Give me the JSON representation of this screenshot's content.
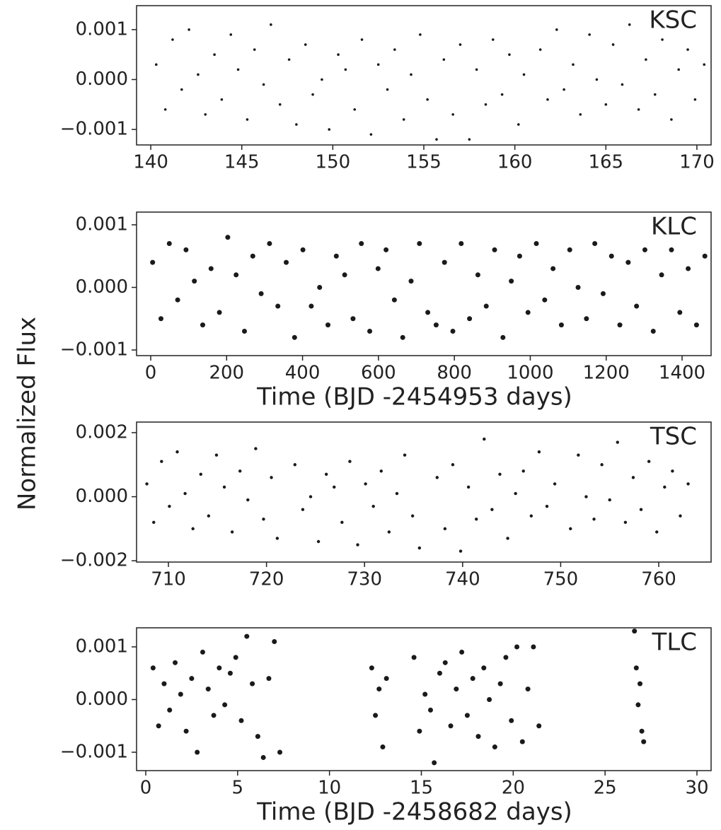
{
  "ylabel": "Normalized Flux",
  "chart_data": [
    {
      "type": "scatter",
      "label": "KSC",
      "color": "#1a1a1a",
      "marker_size": 1.8,
      "xlim": [
        139.22,
        170.78
      ],
      "ylim": [
        -0.00131,
        0.00148
      ],
      "xticks": [
        140,
        145,
        150,
        155,
        160,
        165,
        170
      ],
      "yticks": [
        {
          "value": -0.001,
          "label": "−0.001"
        },
        {
          "value": 0,
          "label": "0.000"
        },
        0.001
      ],
      "x": [
        140.3,
        140.8,
        141.2,
        141.7,
        142.1,
        142.6,
        143.0,
        143.5,
        143.9,
        144.4,
        144.8,
        145.3,
        145.7,
        146.2,
        146.6,
        147.1,
        147.6,
        148.0,
        148.5,
        148.9,
        149.4,
        149.8,
        150.3,
        150.7,
        151.2,
        151.6,
        152.1,
        152.5,
        153.0,
        153.4,
        153.9,
        154.3,
        154.8,
        155.2,
        155.7,
        156.1,
        156.6,
        157.0,
        157.5,
        157.9,
        158.4,
        158.8,
        159.3,
        159.7,
        160.2,
        160.5,
        161.4,
        161.8,
        162.3,
        162.7,
        163.2,
        163.6,
        164.1,
        164.5,
        165.0,
        165.4,
        165.9,
        166.3,
        166.8,
        167.2,
        167.7,
        168.1,
        168.6,
        169.0,
        169.5,
        169.9,
        170.4
      ],
      "y": [
        0.0003,
        -0.0006,
        0.0008,
        -0.0002,
        0.001,
        0.0001,
        -0.0007,
        0.0005,
        -0.0004,
        0.0009,
        0.0002,
        -0.0008,
        0.0006,
        -0.0001,
        0.0011,
        -0.0005,
        0.0004,
        -0.0009,
        0.0007,
        -0.0003,
        0.0,
        -0.001,
        0.0005,
        0.0002,
        -0.0006,
        0.0008,
        -0.0011,
        0.0003,
        -0.0002,
        0.0006,
        -0.0008,
        0.0001,
        0.0009,
        -0.0004,
        -0.0012,
        0.0004,
        -0.0007,
        0.0007,
        -0.0012,
        0.0002,
        -0.0005,
        0.0008,
        -0.0003,
        0.0005,
        -0.0009,
        0.0001,
        0.0006,
        -0.0004,
        0.001,
        -0.0002,
        0.0003,
        -0.0007,
        0.0009,
        0.0,
        -0.0005,
        0.0007,
        -0.0001,
        0.0011,
        -0.0006,
        0.0004,
        -0.0003,
        0.0008,
        -0.0008,
        0.0002,
        0.0006,
        -0.0004,
        0.0003
      ]
    },
    {
      "type": "scatter",
      "label": "KLC",
      "color": "#1a1a1a",
      "marker_size": 3.5,
      "xlabel": "Time (BJD -2454953 days)",
      "xlim": [
        -37.3,
        1476.4
      ],
      "ylim": [
        -0.00109,
        0.001203
      ],
      "xticks": [
        0,
        200,
        400,
        600,
        800,
        1000,
        1200,
        1400
      ],
      "yticks": [
        {
          "value": -0.001,
          "label": "−0.001"
        },
        {
          "value": 0,
          "label": "0.000"
        },
        0.001
      ],
      "x": [
        5,
        27,
        49,
        71,
        93,
        115,
        137,
        159,
        181,
        203,
        225,
        247,
        269,
        291,
        313,
        335,
        357,
        379,
        401,
        423,
        445,
        467,
        489,
        511,
        533,
        555,
        577,
        599,
        620,
        642,
        664,
        686,
        708,
        730,
        752,
        774,
        796,
        818,
        840,
        862,
        884,
        906,
        928,
        950,
        972,
        994,
        1016,
        1038,
        1060,
        1082,
        1104,
        1126,
        1148,
        1170,
        1192,
        1214,
        1236,
        1258,
        1280,
        1302,
        1324,
        1346,
        1372,
        1394,
        1416,
        1438,
        1460
      ],
      "y": [
        0.0004,
        -0.0005,
        0.0007,
        -0.0002,
        0.0006,
        0.0001,
        -0.0006,
        0.0003,
        -0.0004,
        0.0008,
        0.0002,
        -0.0007,
        0.0005,
        -0.0001,
        0.0007,
        -0.0003,
        0.0004,
        -0.0008,
        0.0006,
        -0.0003,
        0.0,
        -0.0006,
        0.0005,
        0.0002,
        -0.0005,
        0.0007,
        -0.0007,
        0.0003,
        0.0006,
        -0.0002,
        -0.0008,
        0.0001,
        0.0007,
        -0.0004,
        -0.0006,
        0.0004,
        -0.0007,
        0.0007,
        -0.0005,
        0.0002,
        -0.0003,
        0.0006,
        -0.0008,
        0.0001,
        0.0005,
        -0.0004,
        0.0007,
        -0.0002,
        0.0003,
        -0.0006,
        0.0006,
        0.0,
        -0.0005,
        0.0007,
        -0.0001,
        0.0005,
        -0.0006,
        0.0004,
        -0.0003,
        0.0006,
        -0.0007,
        0.0002,
        0.0006,
        -0.0004,
        0.0003,
        -0.0006,
        0.0005
      ]
    },
    {
      "type": "scatter",
      "label": "TSC",
      "color": "#1a1a1a",
      "marker_size": 2.2,
      "xlim": [
        706.75,
        765.34
      ],
      "ylim": [
        -0.00204,
        0.00233
      ],
      "xticks": [
        710,
        720,
        730,
        740,
        750,
        760
      ],
      "yticks": [
        {
          "value": -0.002,
          "label": "−0.002"
        },
        {
          "value": 0,
          "label": "0.000"
        },
        0.002
      ],
      "x": [
        707.8,
        708.5,
        709.3,
        710.1,
        710.9,
        711.7,
        712.5,
        713.3,
        714.1,
        714.9,
        715.7,
        716.5,
        717.3,
        718.1,
        718.9,
        719.7,
        720.5,
        721.1,
        722.9,
        723.7,
        724.5,
        725.3,
        726.1,
        726.9,
        727.7,
        728.5,
        729.3,
        730.1,
        730.9,
        731.7,
        732.5,
        733.3,
        734.1,
        734.9,
        735.6,
        737.4,
        738.2,
        739.0,
        739.8,
        740.6,
        741.4,
        742.2,
        743.0,
        743.8,
        744.6,
        745.4,
        746.2,
        747.0,
        747.8,
        748.6,
        749.4,
        751.0,
        751.8,
        752.6,
        753.4,
        754.2,
        755.0,
        755.8,
        756.6,
        757.4,
        758.2,
        759.0,
        759.8,
        760.6,
        761.4,
        762.2,
        763.0
      ],
      "y": [
        0.0004,
        -0.0008,
        0.0011,
        -0.0003,
        0.0014,
        0.0001,
        -0.001,
        0.0007,
        -0.0006,
        0.0013,
        0.0003,
        -0.0011,
        0.0008,
        -0.0001,
        0.0015,
        -0.0007,
        0.0006,
        -0.0013,
        0.001,
        -0.0004,
        0.0,
        -0.0014,
        0.0007,
        0.0003,
        -0.0008,
        0.0011,
        -0.0015,
        0.0004,
        -0.0003,
        0.0008,
        -0.0011,
        0.0001,
        0.0013,
        -0.0006,
        -0.0016,
        0.0006,
        -0.001,
        0.001,
        -0.0017,
        0.0003,
        -0.0007,
        0.0018,
        -0.0004,
        0.0007,
        -0.0013,
        0.0001,
        0.0008,
        -0.0006,
        0.0014,
        -0.0003,
        0.0004,
        -0.001,
        0.0013,
        0.0,
        -0.0007,
        0.001,
        -0.0001,
        0.0017,
        -0.0008,
        0.0006,
        -0.0004,
        0.0011,
        -0.0011,
        0.0003,
        0.0008,
        -0.0006,
        0.0004
      ]
    },
    {
      "type": "scatter",
      "label": "TLC",
      "color": "#1a1a1a",
      "marker_size": 3.5,
      "xlabel": "Time (BJD -2458682 days)",
      "xlim": [
        -0.5,
        30.77
      ],
      "ylim": [
        -0.001349,
        0.001362
      ],
      "xticks": [
        0,
        5,
        10,
        15,
        20,
        25,
        30
      ],
      "yticks": [
        {
          "value": -0.001,
          "label": "−0.001"
        },
        {
          "value": 0,
          "label": "0.000"
        },
        0.001
      ],
      "x": [
        0.4,
        0.7,
        1.0,
        1.3,
        1.6,
        1.9,
        2.2,
        2.5,
        2.8,
        3.1,
        3.4,
        3.7,
        4.0,
        4.3,
        4.6,
        4.9,
        5.2,
        5.5,
        5.8,
        6.1,
        6.4,
        6.7,
        7.0,
        7.3,
        12.3,
        12.5,
        12.7,
        12.9,
        13.1,
        14.6,
        14.9,
        15.2,
        15.5,
        15.7,
        16.0,
        16.3,
        16.6,
        16.9,
        17.2,
        17.5,
        17.8,
        18.1,
        18.4,
        18.7,
        19.0,
        19.3,
        19.6,
        19.9,
        20.2,
        20.5,
        20.8,
        21.1,
        21.4,
        26.6,
        26.7,
        26.8,
        26.9,
        27.0,
        27.1
      ],
      "y": [
        0.0006,
        -0.0005,
        0.0003,
        -0.0002,
        0.0007,
        0.0001,
        -0.0006,
        0.0004,
        -0.001,
        0.0009,
        0.0002,
        -0.0003,
        0.0006,
        -0.0001,
        0.0005,
        0.0008,
        -0.0004,
        0.0012,
        0.0003,
        -0.0007,
        -0.0011,
        0.0004,
        0.0011,
        -0.001,
        0.0006,
        -0.0003,
        0.0002,
        -0.0009,
        0.0004,
        0.0008,
        -0.0006,
        0.0001,
        -0.0002,
        -0.0012,
        0.0005,
        0.0007,
        -0.0005,
        0.0002,
        0.0009,
        -0.0003,
        0.0004,
        -0.0007,
        0.0006,
        0.0,
        -0.0009,
        0.0003,
        0.0008,
        -0.0004,
        0.001,
        -0.0008,
        0.0002,
        0.001,
        -0.0005,
        0.0013,
        0.0006,
        -0.0001,
        0.0003,
        -0.0006,
        -0.0008
      ]
    }
  ]
}
